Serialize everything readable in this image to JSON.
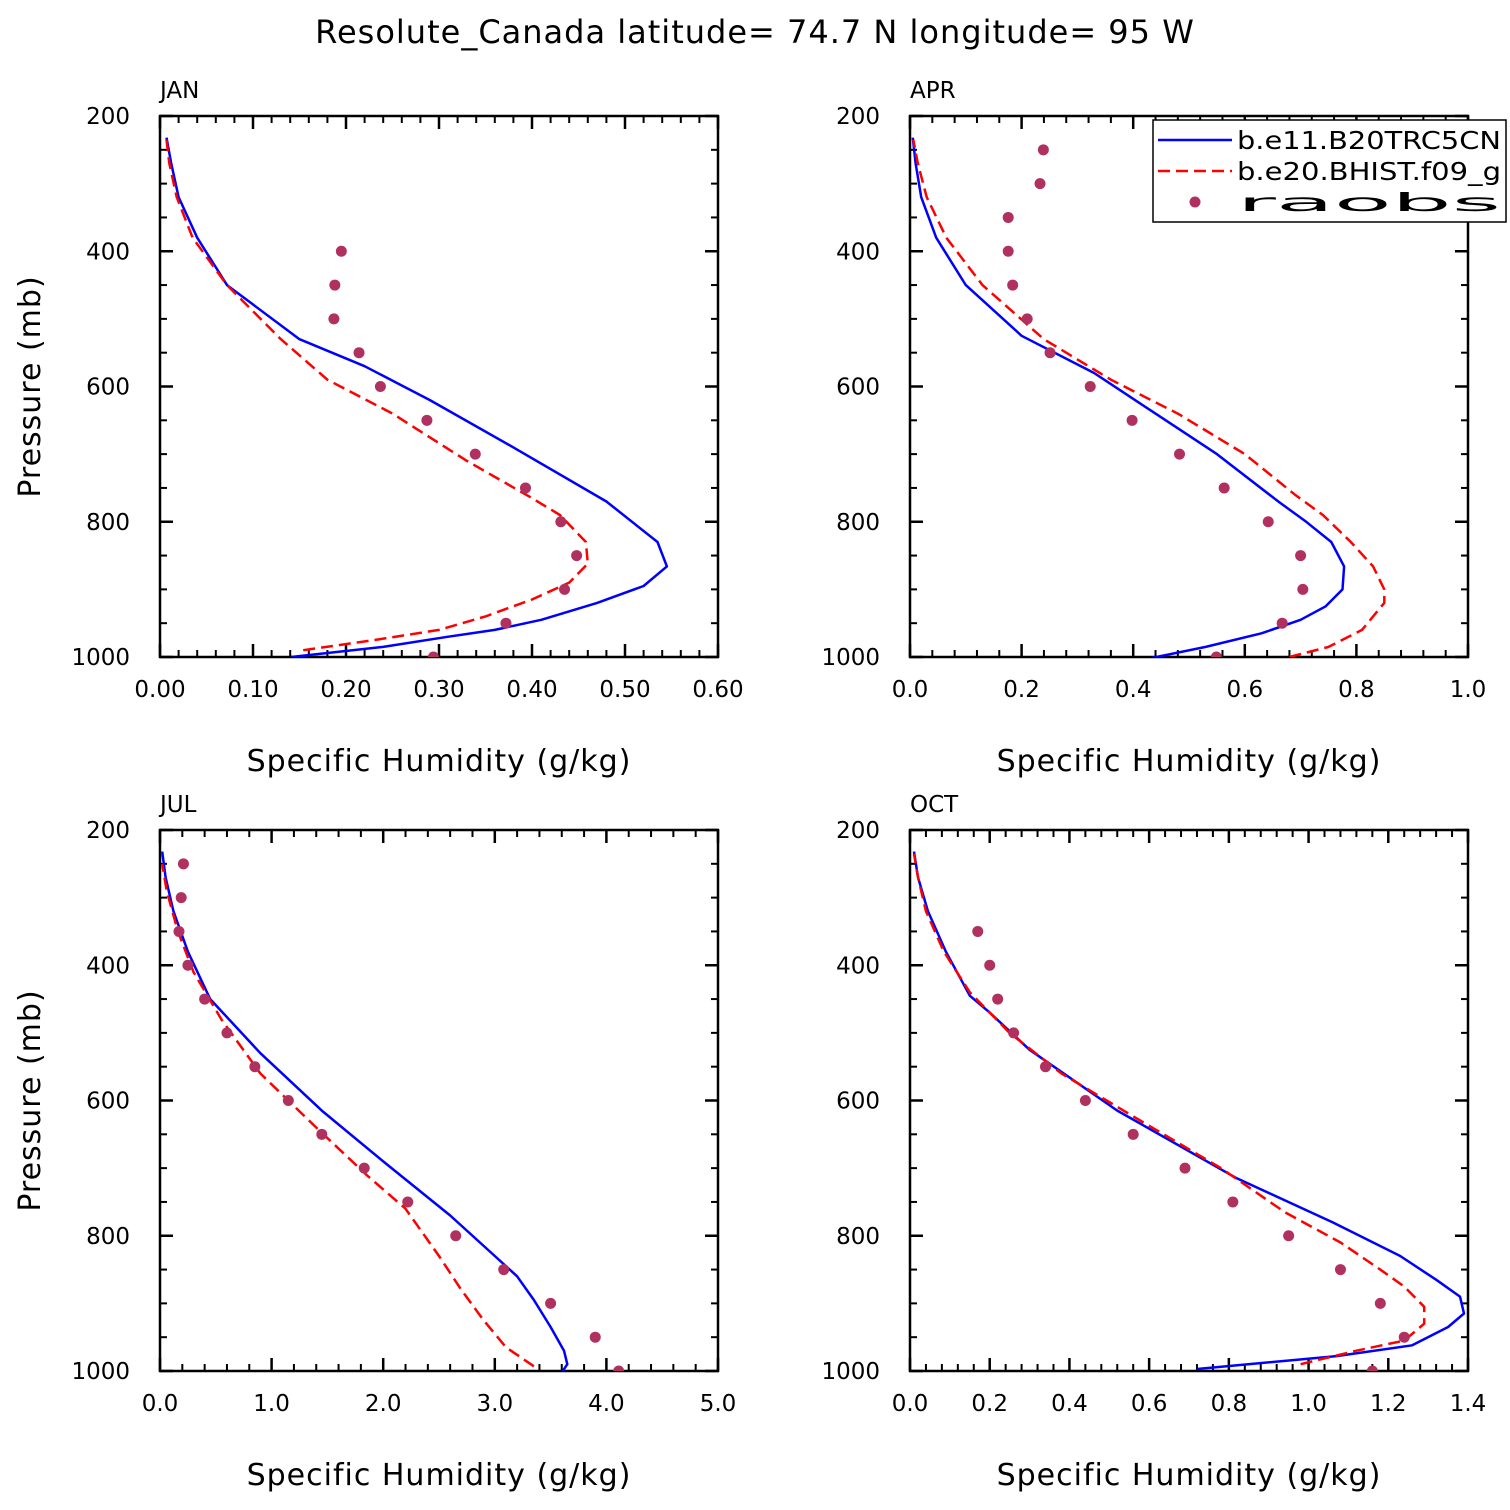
{
  "title": "Resolute_Canada  latitude= 74.7 N longitude= 95 W",
  "legend": {
    "entries": [
      {
        "label": "b.e11.B20TRC5CN",
        "color": "#0000ff",
        "style": "solid"
      },
      {
        "label": "b.e20.BHIST.f09_g",
        "color": "#ff0000",
        "style": "dashed"
      },
      {
        "label": "raobs",
        "color": "#b03060",
        "style": "marker"
      }
    ]
  },
  "chart_data": [
    {
      "type": "line",
      "panel_label": "JAN",
      "xlabel": "Specific Humidity (g/kg)",
      "ylabel": "Pressure (mb)",
      "xlim": [
        0,
        0.6
      ],
      "ylim": [
        1000,
        200
      ],
      "xticks": [
        "0.00",
        "0.10",
        "0.20",
        "0.30",
        "0.40",
        "0.50",
        "0.60"
      ],
      "xtick_values": [
        0,
        0.1,
        0.2,
        0.3,
        0.4,
        0.5,
        0.6
      ],
      "yticks": [
        "200",
        "400",
        "600",
        "800",
        "1000"
      ],
      "ytick_values": [
        200,
        400,
        600,
        800,
        1000
      ],
      "series": [
        {
          "name": "b.e11.B20TRC5CN",
          "color": "#0000ff",
          "style": "solid",
          "points": [
            [
              0.141,
              1000
            ],
            [
              0.24,
              985
            ],
            [
              0.31,
              970
            ],
            [
              0.36,
              960
            ],
            [
              0.41,
              945
            ],
            [
              0.47,
              920
            ],
            [
              0.52,
              895
            ],
            [
              0.545,
              866
            ],
            [
              0.535,
              830
            ],
            [
              0.48,
              770
            ],
            [
              0.38,
              690
            ],
            [
              0.29,
              620
            ],
            [
              0.22,
              570
            ],
            [
              0.15,
              530
            ],
            [
              0.072,
              450
            ],
            [
              0.04,
              380
            ],
            [
              0.02,
              320
            ],
            [
              0.012,
              270
            ],
            [
              0.007,
              232
            ]
          ]
        },
        {
          "name": "b.e20.BHIST.f09_g",
          "color": "#ff0000",
          "style": "dashed",
          "points": [
            [
              0.154,
              990
            ],
            [
              0.23,
              975
            ],
            [
              0.3,
              960
            ],
            [
              0.35,
              940
            ],
            [
              0.4,
              915
            ],
            [
              0.44,
              890
            ],
            [
              0.46,
              862
            ],
            [
              0.458,
              830
            ],
            [
              0.43,
              790
            ],
            [
              0.4,
              765
            ],
            [
              0.33,
              710
            ],
            [
              0.25,
              640
            ],
            [
              0.18,
              590
            ],
            [
              0.13,
              530
            ],
            [
              0.072,
              450
            ],
            [
              0.035,
              380
            ],
            [
              0.018,
              320
            ],
            [
              0.01,
              270
            ],
            [
              0.007,
              235
            ]
          ]
        },
        {
          "name": "raobs",
          "color": "#b03060",
          "style": "marker",
          "points": [
            [
              0.294,
              1000
            ],
            [
              0.372,
              950
            ],
            [
              0.435,
              900
            ],
            [
              0.448,
              850
            ],
            [
              0.431,
              800
            ],
            [
              0.393,
              750
            ],
            [
              0.339,
              700
            ],
            [
              0.287,
              650
            ],
            [
              0.237,
              600
            ],
            [
              0.214,
              550
            ],
            [
              0.187,
              500
            ],
            [
              0.188,
              450
            ],
            [
              0.195,
              400
            ]
          ]
        }
      ]
    },
    {
      "type": "line",
      "panel_label": "APR",
      "xlabel": "Specific Humidity (g/kg)",
      "ylabel": "",
      "xlim": [
        0,
        1.0
      ],
      "ylim": [
        1000,
        200
      ],
      "xticks": [
        "0.0",
        "0.2",
        "0.4",
        "0.6",
        "0.8",
        "1.0"
      ],
      "xtick_values": [
        0,
        0.2,
        0.4,
        0.6,
        0.8,
        1.0
      ],
      "yticks": [
        "200",
        "400",
        "600",
        "800",
        "1000"
      ],
      "ytick_values": [
        200,
        400,
        600,
        800,
        1000
      ],
      "series": [
        {
          "name": "b.e11.B20TRC5CN",
          "color": "#0000ff",
          "style": "solid",
          "points": [
            [
              0.424,
              1003
            ],
            [
              0.53,
              985
            ],
            [
              0.63,
              965
            ],
            [
              0.7,
              945
            ],
            [
              0.745,
              925
            ],
            [
              0.775,
              900
            ],
            [
              0.778,
              866
            ],
            [
              0.755,
              830
            ],
            [
              0.71,
              800
            ],
            [
              0.66,
              770
            ],
            [
              0.55,
              700
            ],
            [
              0.44,
              640
            ],
            [
              0.33,
              580
            ],
            [
              0.2,
              525
            ],
            [
              0.1,
              450
            ],
            [
              0.047,
              380
            ],
            [
              0.02,
              320
            ],
            [
              0.01,
              270
            ],
            [
              0.005,
              232
            ]
          ]
        },
        {
          "name": "b.e20.BHIST.f09_g",
          "color": "#ff0000",
          "style": "dashed",
          "points": [
            [
              0.68,
              1000
            ],
            [
              0.75,
              985
            ],
            [
              0.81,
              960
            ],
            [
              0.85,
              920
            ],
            [
              0.85,
              900
            ],
            [
              0.83,
              866
            ],
            [
              0.79,
              830
            ],
            [
              0.74,
              790
            ],
            [
              0.69,
              760
            ],
            [
              0.6,
              700
            ],
            [
              0.48,
              640
            ],
            [
              0.36,
              590
            ],
            [
              0.24,
              530
            ],
            [
              0.13,
              450
            ],
            [
              0.065,
              380
            ],
            [
              0.03,
              320
            ],
            [
              0.014,
              270
            ],
            [
              0.006,
              235
            ]
          ]
        },
        {
          "name": "raobs",
          "color": "#b03060",
          "style": "marker",
          "points": [
            [
              0.549,
              1000
            ],
            [
              0.667,
              950
            ],
            [
              0.704,
              900
            ],
            [
              0.7,
              850
            ],
            [
              0.642,
              800
            ],
            [
              0.563,
              750
            ],
            [
              0.483,
              700
            ],
            [
              0.398,
              650
            ],
            [
              0.323,
              600
            ],
            [
              0.251,
              550
            ],
            [
              0.21,
              500
            ],
            [
              0.184,
              450
            ],
            [
              0.176,
              400
            ],
            [
              0.176,
              350
            ],
            [
              0.233,
              300
            ],
            [
              0.239,
              250
            ]
          ]
        }
      ]
    },
    {
      "type": "line",
      "panel_label": "JUL",
      "xlabel": "Specific Humidity (g/kg)",
      "ylabel": "Pressure (mb)",
      "xlim": [
        0,
        5.0
      ],
      "ylim": [
        1000,
        200
      ],
      "xticks": [
        "0.0",
        "1.0",
        "2.0",
        "3.0",
        "4.0",
        "5.0"
      ],
      "xtick_values": [
        0,
        1,
        2,
        3,
        4,
        5
      ],
      "yticks": [
        "200",
        "400",
        "600",
        "800",
        "1000"
      ],
      "ytick_values": [
        200,
        400,
        600,
        800,
        1000
      ],
      "series": [
        {
          "name": "b.e11.B20TRC5CN",
          "color": "#0000ff",
          "style": "solid",
          "points": [
            [
              3.6,
              1002
            ],
            [
              3.65,
              990
            ],
            [
              3.62,
              970
            ],
            [
              3.5,
              935
            ],
            [
              3.35,
              895
            ],
            [
              3.2,
              860
            ],
            [
              3.0,
              830
            ],
            [
              2.6,
              770
            ],
            [
              2.0,
              690
            ],
            [
              1.45,
              615
            ],
            [
              0.9,
              530
            ],
            [
              0.45,
              450
            ],
            [
              0.25,
              380
            ],
            [
              0.12,
              320
            ],
            [
              0.05,
              270
            ],
            [
              0.02,
              232
            ]
          ]
        },
        {
          "name": "b.e20.BHIST.f09_g",
          "color": "#ff0000",
          "style": "dashed",
          "points": [
            [
              3.35,
              993
            ],
            [
              3.1,
              965
            ],
            [
              2.9,
              925
            ],
            [
              2.7,
              880
            ],
            [
              2.5,
              830
            ],
            [
              2.2,
              760
            ],
            [
              1.85,
              710
            ],
            [
              1.4,
              640
            ],
            [
              0.9,
              560
            ],
            [
              0.55,
              480
            ],
            [
              0.3,
              410
            ],
            [
              0.16,
              350
            ],
            [
              0.06,
              290
            ],
            [
              0.02,
              250
            ]
          ]
        },
        {
          "name": "raobs",
          "color": "#b03060",
          "style": "marker",
          "points": [
            [
              4.11,
              1000
            ],
            [
              3.9,
              950
            ],
            [
              3.5,
              900
            ],
            [
              3.08,
              850
            ],
            [
              2.65,
              800
            ],
            [
              2.22,
              750
            ],
            [
              1.83,
              700
            ],
            [
              1.45,
              650
            ],
            [
              1.15,
              600
            ],
            [
              0.85,
              550
            ],
            [
              0.6,
              500
            ],
            [
              0.4,
              450
            ],
            [
              0.25,
              400
            ],
            [
              0.17,
              350
            ],
            [
              0.19,
              300
            ],
            [
              0.21,
              250
            ]
          ]
        }
      ]
    },
    {
      "type": "line",
      "panel_label": "OCT",
      "xlabel": "Specific Humidity (g/kg)",
      "ylabel": "",
      "xlim": [
        0,
        1.4
      ],
      "ylim": [
        1000,
        200
      ],
      "xticks": [
        "0.0",
        "0.2",
        "0.4",
        "0.6",
        "0.8",
        "1.0",
        "1.2",
        "1.4"
      ],
      "xtick_values": [
        0,
        0.2,
        0.4,
        0.6,
        0.8,
        1.0,
        1.2,
        1.4
      ],
      "yticks": [
        "200",
        "400",
        "600",
        "800",
        "1000"
      ],
      "ytick_values": [
        200,
        400,
        600,
        800,
        1000
      ],
      "series": [
        {
          "name": "b.e11.B20TRC5CN",
          "color": "#0000ff",
          "style": "solid",
          "points": [
            [
              0.72,
              997
            ],
            [
              1.07,
              978
            ],
            [
              1.26,
              962
            ],
            [
              1.35,
              935
            ],
            [
              1.39,
              915
            ],
            [
              1.38,
              890
            ],
            [
              1.32,
              865
            ],
            [
              1.23,
              830
            ],
            [
              1.06,
              780
            ],
            [
              0.82,
              715
            ],
            [
              0.52,
              615
            ],
            [
              0.3,
              525
            ],
            [
              0.2,
              470
            ],
            [
              0.15,
              445
            ],
            [
              0.09,
              380
            ],
            [
              0.045,
              320
            ],
            [
              0.02,
              270
            ],
            [
              0.01,
              232
            ]
          ]
        },
        {
          "name": "b.e20.BHIST.f09_g",
          "color": "#ff0000",
          "style": "dashed",
          "points": [
            [
              0.98,
              990
            ],
            [
              1.12,
              970
            ],
            [
              1.24,
              955
            ],
            [
              1.29,
              930
            ],
            [
              1.29,
              905
            ],
            [
              1.24,
              875
            ],
            [
              1.18,
              850
            ],
            [
              1.08,
              810
            ],
            [
              0.94,
              765
            ],
            [
              0.78,
              700
            ],
            [
              0.55,
              620
            ],
            [
              0.38,
              560
            ],
            [
              0.25,
              500
            ],
            [
              0.15,
              440
            ],
            [
              0.085,
              380
            ],
            [
              0.04,
              320
            ],
            [
              0.02,
              270
            ],
            [
              0.01,
              235
            ]
          ]
        },
        {
          "name": "raobs",
          "color": "#b03060",
          "style": "marker",
          "points": [
            [
              1.16,
              1000
            ],
            [
              1.24,
              950
            ],
            [
              1.18,
              900
            ],
            [
              1.08,
              850
            ],
            [
              0.95,
              800
            ],
            [
              0.81,
              750
            ],
            [
              0.69,
              700
            ],
            [
              0.56,
              650
            ],
            [
              0.44,
              600
            ],
            [
              0.34,
              550
            ],
            [
              0.26,
              500
            ],
            [
              0.22,
              450
            ],
            [
              0.2,
              400
            ],
            [
              0.17,
              350
            ]
          ]
        }
      ]
    }
  ]
}
